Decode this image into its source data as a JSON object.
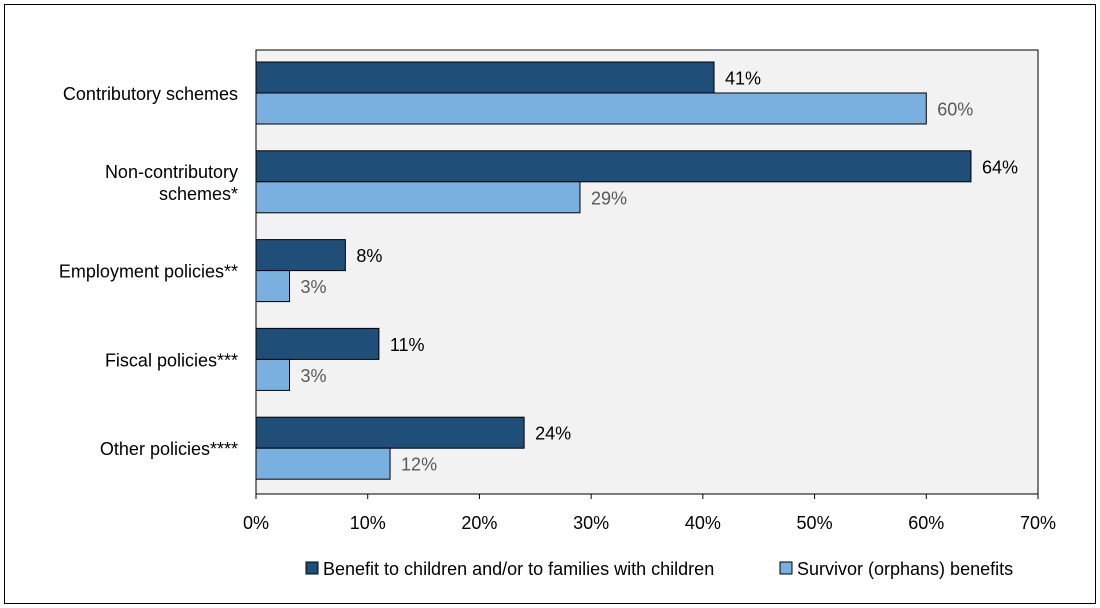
{
  "chart_data": {
    "type": "bar",
    "orientation": "horizontal",
    "categories": [
      [
        "Contributory schemes"
      ],
      [
        "Non-contributory",
        "schemes*"
      ],
      [
        "Employment policies**"
      ],
      [
        "Fiscal policies***"
      ],
      [
        "Other policies****"
      ]
    ],
    "series": [
      {
        "name": "Benefit to children and/or to families with children",
        "values": [
          41,
          64,
          8,
          11,
          24
        ],
        "labels": [
          "41%",
          "64%",
          "8%",
          "11%",
          "24%"
        ],
        "color": "#1f4e79",
        "label_color": "#000000"
      },
      {
        "name": "Survivor (orphans) benefits",
        "values": [
          60,
          29,
          3,
          3,
          12
        ],
        "labels": [
          "60%",
          "29%",
          "3%",
          "3%",
          "12%"
        ],
        "color": "#7ab0e0",
        "label_color": "#595959"
      }
    ],
    "xlim": [
      0,
      70
    ],
    "xticks": [
      0,
      10,
      20,
      30,
      40,
      50,
      60,
      70
    ],
    "xtick_labels": [
      "0%",
      "10%",
      "20%",
      "30%",
      "40%",
      "50%",
      "60%",
      "70%"
    ],
    "plot_background": "#f2f2f2",
    "grid": false,
    "legend_position": "bottom"
  }
}
